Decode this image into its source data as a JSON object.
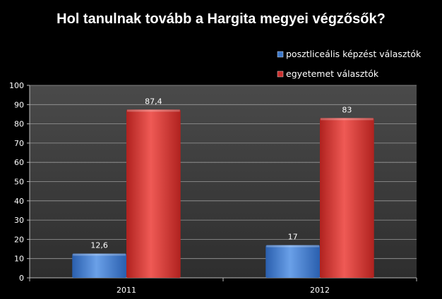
{
  "chart_data": {
    "type": "bar",
    "title": "Hol tanulnak tovább a Hargita megyei végzősők?",
    "categories": [
      "2011",
      "2012"
    ],
    "series": [
      {
        "name": "posztliceális képzést választók",
        "values": [
          12.6,
          17
        ],
        "labels": [
          "12,6",
          "17"
        ],
        "color": "#3d78c9"
      },
      {
        "name": "egyetemet választók",
        "values": [
          87.4,
          83
        ],
        "labels": [
          "87,4",
          "83"
        ],
        "color": "#c9302e"
      }
    ],
    "ylim": [
      0,
      100
    ],
    "yticks": [
      0,
      10,
      20,
      30,
      40,
      50,
      60,
      70,
      80,
      90,
      100
    ],
    "xlabel": "",
    "ylabel": "",
    "grid": true,
    "legend_position": "top-right",
    "background": "#000000",
    "plot_background": "#3a3a3a"
  }
}
